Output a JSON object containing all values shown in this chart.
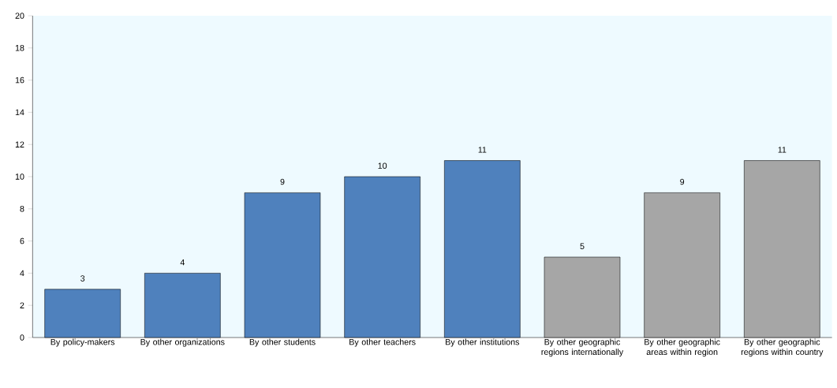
{
  "chart_data": {
    "type": "bar",
    "categories": [
      "By policy-makers",
      "By other organizations",
      "By other students",
      "By other teachers",
      "By other institutions",
      "By other geographic regions internationally",
      "By other geographic areas within region",
      "By other geographic regions within country"
    ],
    "values": [
      3,
      4,
      9,
      10,
      11,
      5,
      9,
      11
    ],
    "colors": [
      "#4f81bd",
      "#4f81bd",
      "#4f81bd",
      "#4f81bd",
      "#4f81bd",
      "#a6a6a6",
      "#a6a6a6",
      "#a6a6a6"
    ],
    "ylim": [
      0,
      20
    ],
    "yticks": [
      0,
      2,
      4,
      6,
      8,
      10,
      12,
      14,
      16,
      18,
      20
    ],
    "data_labels": true,
    "grid": false
  }
}
